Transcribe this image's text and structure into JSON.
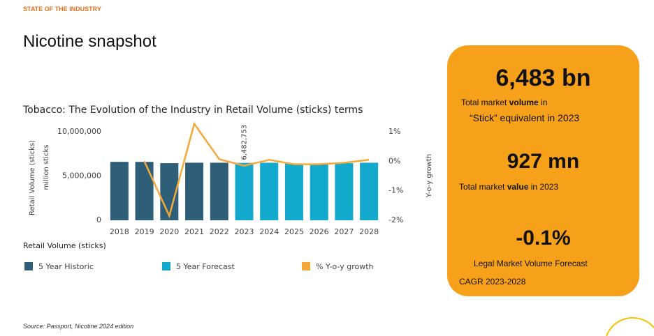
{
  "header": "STATE OF THE INDUSTRY",
  "title": "Nicotine snapshot",
  "chart_data": {
    "type": "bar",
    "title": "Tobacco: The Evolution of the Industry in Retail Volume (sticks) terms",
    "y_label": "Retail Volume (sticks)",
    "y_sublabel": "million sticks",
    "y2_label": "Y-o-y growth",
    "x_label": "Retail Volume (sticks)",
    "categories": [
      "2018",
      "2019",
      "2020",
      "2021",
      "2022",
      "2023",
      "2024",
      "2025",
      "2026",
      "2027",
      "2028"
    ],
    "series": [
      {
        "name": "5 Year Historic",
        "type": "bar",
        "color": "#2f5f78",
        "values": [
          6600000,
          6600000,
          6450000,
          6500000,
          6500000,
          null,
          null,
          null,
          null,
          null,
          null
        ]
      },
      {
        "name": "5 Year Forecast",
        "type": "bar",
        "color": "#12a9cc",
        "values": [
          null,
          null,
          null,
          null,
          null,
          6482753,
          6500000,
          6400000,
          6400000,
          6450000,
          6500000
        ],
        "value_labels": [
          null,
          null,
          null,
          null,
          null,
          "6,482,753",
          null,
          null,
          null,
          null,
          null
        ]
      },
      {
        "name": "% Y-o-y growth",
        "type": "line",
        "axis": "y2",
        "color": "#f5a93a",
        "values": [
          null,
          0,
          -1.85,
          1.27,
          0.07,
          -0.15,
          0.05,
          -0.1,
          -0.1,
          -0.05,
          0.05
        ]
      }
    ],
    "ylim": [
      0,
      10000000
    ],
    "yticks": [
      0,
      {
        "value": 5000000,
        "label": "5,000,000"
      },
      {
        "value": 10000000,
        "label": "10,000,000"
      }
    ],
    "y2lim": [
      -2,
      1
    ],
    "y2ticks": [
      {
        "value": -2,
        "label": "-2%"
      },
      {
        "value": -1,
        "label": "-1%"
      },
      {
        "value": 0,
        "label": "0%"
      },
      {
        "value": 1,
        "label": "1%"
      }
    ],
    "grid": false
  },
  "card": {
    "volume": "6,483 bn",
    "volume_note": [
      "Total market ",
      "volume",
      " in"
    ],
    "volume_note2": "“Stick” equivalent in 2023",
    "value": "927 mn",
    "value_note": [
      "Total market ",
      "value",
      " in 2023"
    ],
    "cagr": "-0.1%",
    "cagr_note": "Legal Market Volume Forecast",
    "cagr_note2": "CAGR 2023-2028"
  },
  "source": "Source: Passport, Nicotine 2024 edition"
}
